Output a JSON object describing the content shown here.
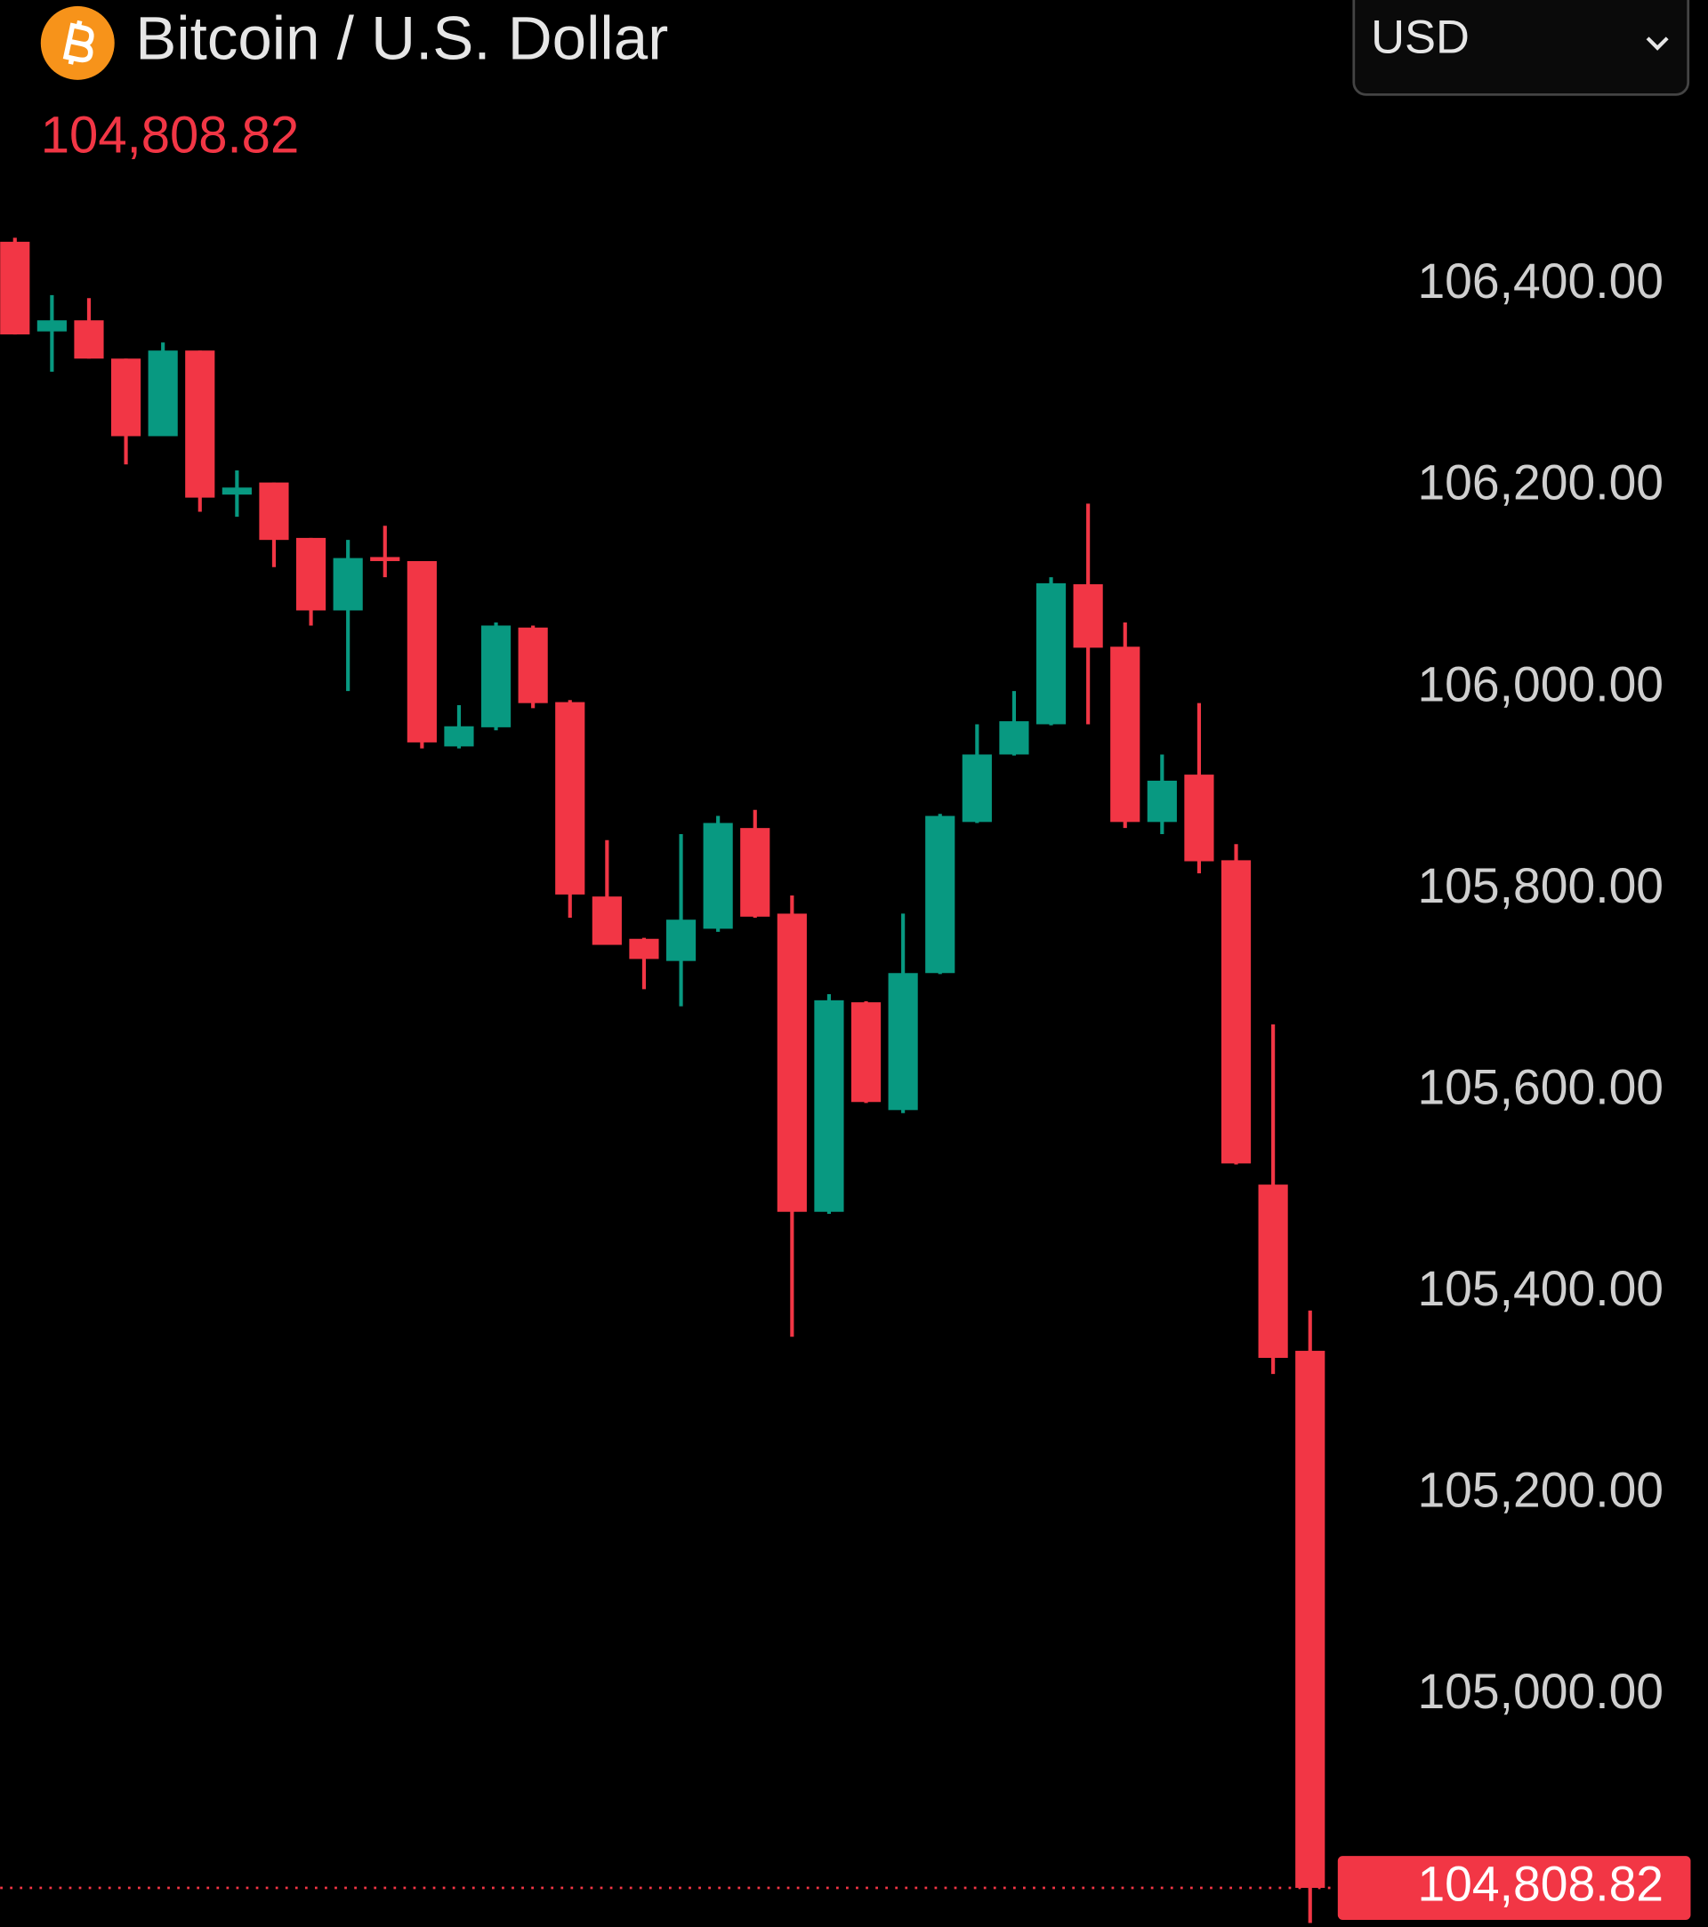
{
  "chart_data": {
    "type": "candlestick",
    "title": "Bitcoin / U.S. Dollar",
    "currency": "USD",
    "last_price": {
      "value": 104808.82,
      "label": "104,808.82"
    },
    "up_color": "#089981",
    "down_color": "#f23645",
    "ylim": [
      104770,
      106500
    ],
    "yticks": [
      {
        "value": 106400,
        "label": "106,400.00"
      },
      {
        "value": 106200,
        "label": "106,200.00"
      },
      {
        "value": 106000,
        "label": "106,000.00"
      },
      {
        "value": 105800,
        "label": "105,800.00"
      },
      {
        "value": 105600,
        "label": "105,600.00"
      },
      {
        "value": 105400,
        "label": "105,400.00"
      },
      {
        "value": 105200,
        "label": "105,200.00"
      },
      {
        "value": 105000,
        "label": "105,000.00"
      }
    ],
    "candles": {
      "open": [
        106443,
        106354,
        106365,
        106327,
        106250,
        106335,
        106192,
        106204,
        106149,
        106077,
        106130,
        106126,
        105942,
        105961,
        106060,
        105986,
        105793,
        105751,
        105729,
        105761,
        105861,
        105776,
        105480,
        105688,
        105581,
        105717,
        105867,
        105934,
        105964,
        106103,
        106041,
        105867,
        105914,
        105829,
        105507,
        105342
      ],
      "high": [
        106447,
        106390,
        106387,
        106327,
        106343,
        106335,
        106216,
        106204,
        106149,
        106147,
        106161,
        106126,
        105983,
        106065,
        106062,
        105988,
        105849,
        105752,
        105855,
        105873,
        105879,
        105794,
        105696,
        105689,
        105776,
        105875,
        105964,
        105997,
        106110,
        106183,
        106065,
        105934,
        105985,
        105845,
        105666,
        105382
      ],
      "low": [
        106351,
        106314,
        106327,
        106222,
        106250,
        106175,
        106170,
        106120,
        106062,
        105997,
        106110,
        105940,
        105940,
        105958,
        105980,
        105772,
        105745,
        105701,
        105684,
        105758,
        105772,
        105356,
        105478,
        105588,
        105578,
        105716,
        105866,
        105933,
        105963,
        105964,
        105861,
        105855,
        105816,
        105527,
        105319,
        104774
      ],
      "close": [
        106351,
        106365,
        106327,
        106250,
        106335,
        106189,
        106199,
        106147,
        106077,
        106129,
        106126,
        105946,
        105962,
        106062,
        105985,
        105795,
        105745,
        105731,
        105770,
        105866,
        105773,
        105480,
        105690,
        105589,
        105717,
        105873,
        105934,
        105967,
        106104,
        106040,
        105867,
        105908,
        105828,
        105528,
        105335,
        104808.82
      ]
    }
  }
}
